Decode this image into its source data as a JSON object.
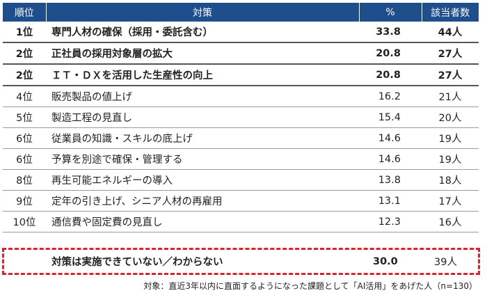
{
  "headers": {
    "rank": "順位",
    "measure": "対策",
    "pct": "%",
    "count": "該当者数"
  },
  "rows": [
    {
      "rank": "1位",
      "measure": "専門人材の確保（採用・委託含む）",
      "pct": "33.8",
      "count": "44人"
    },
    {
      "rank": "2位",
      "measure": "正社員の採用対象層の拡大",
      "pct": "20.8",
      "count": "27人"
    },
    {
      "rank": "2位",
      "measure": "ＩＴ・ＤＸを活用した生産性の向上",
      "pct": "20.8",
      "count": "27人"
    },
    {
      "rank": "4位",
      "measure": "販売製品の値上げ",
      "pct": "16.2",
      "count": "21人"
    },
    {
      "rank": "5位",
      "measure": "製造工程の見直し",
      "pct": "15.4",
      "count": "20人"
    },
    {
      "rank": "6位",
      "measure": "従業員の知識・スキルの底上げ",
      "pct": "14.6",
      "count": "19人"
    },
    {
      "rank": "6位",
      "measure": "予算を別途で確保・管理する",
      "pct": "14.6",
      "count": "19人"
    },
    {
      "rank": "8位",
      "measure": "再生可能エネルギーの導入",
      "pct": "13.8",
      "count": "18人"
    },
    {
      "rank": "9位",
      "measure": "定年の引き上げ、シニア人材の再雇用",
      "pct": "13.1",
      "count": "17人"
    },
    {
      "rank": "10位",
      "measure": "通信費や固定費の見直し",
      "pct": "12.3",
      "count": "16人"
    }
  ],
  "none_row": {
    "measure": "対策は実施できていない／わからない",
    "pct": "30.0",
    "count": "39人"
  },
  "footnote": "対象：直近3年以内に直面するようになった課題として「AI活用」をあげた人（n=130）"
}
